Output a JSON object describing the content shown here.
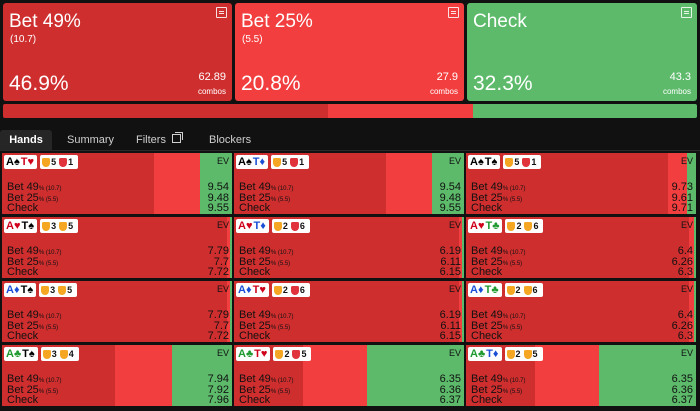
{
  "actions": [
    {
      "name": "Bet 49%",
      "size": "(10.7)",
      "freq": "46.9%",
      "combos": "62.89",
      "combos_label": "combos",
      "color": "#cf2e2e"
    },
    {
      "name": "Bet 25%",
      "size": "(5.5)",
      "freq": "20.8%",
      "combos": "27.9",
      "combos_label": "combos",
      "color": "#f23e3e"
    },
    {
      "name": "Check",
      "size": "",
      "freq": "32.3%",
      "combos": "43.3",
      "combos_label": "combos",
      "color": "#5cba6a"
    }
  ],
  "freq_bar": [
    46.9,
    20.8,
    32.3
  ],
  "tabs": [
    {
      "label": "Hands",
      "active": true
    },
    {
      "label": "Summary",
      "active": false
    },
    {
      "label": "Filters",
      "active": false
    },
    {
      "label": "Blockers",
      "active": false
    }
  ],
  "row_labels": {
    "bet49": "Bet 49",
    "bet49_sub": "% (10.7)",
    "bet25": "Bet 25",
    "bet25_sub": "% (5.5)",
    "check": "Check",
    "ev": "EV"
  },
  "colors": {
    "bet49": "#cf2e2e",
    "bet25": "#f23e3e",
    "check": "#5cba6a"
  },
  "hands": [
    {
      "cards": [
        {
          "r": "A",
          "s": "♠",
          "c": "b"
        },
        {
          "r": "T",
          "s": "♥",
          "c": "r"
        }
      ],
      "badges": [
        {
          "color": "#f5a623",
          "n": "5"
        },
        {
          "color": "#e0333b",
          "n": "1"
        }
      ],
      "freqs": [
        66,
        20,
        14
      ],
      "ev": [
        "9.54",
        "9.48",
        "9.55"
      ]
    },
    {
      "cards": [
        {
          "r": "A",
          "s": "♠",
          "c": "b"
        },
        {
          "r": "T",
          "s": "♦",
          "c": "d"
        }
      ],
      "badges": [
        {
          "color": "#f5a623",
          "n": "5"
        },
        {
          "color": "#e0333b",
          "n": "1"
        }
      ],
      "freqs": [
        66,
        20,
        14
      ],
      "ev": [
        "9.54",
        "9.48",
        "9.55"
      ]
    },
    {
      "cards": [
        {
          "r": "A",
          "s": "♠",
          "c": "b"
        },
        {
          "r": "T",
          "s": "♠",
          "c": "b"
        }
      ],
      "badges": [
        {
          "color": "#f5a623",
          "n": "5"
        },
        {
          "color": "#e0333b",
          "n": "1"
        }
      ],
      "freqs": [
        88,
        8,
        4
      ],
      "ev": [
        "9.73",
        "9.61",
        "9.71"
      ]
    },
    {
      "cards": [
        {
          "r": "A",
          "s": "♥",
          "c": "r"
        },
        {
          "r": "T",
          "s": "♠",
          "c": "b"
        }
      ],
      "badges": [
        {
          "color": "#f5a623",
          "n": "3"
        },
        {
          "color": "#f5a623",
          "n": "5"
        }
      ],
      "freqs": [
        98,
        1,
        1
      ],
      "ev": [
        "7.79",
        "7.7",
        "7.72"
      ]
    },
    {
      "cards": [
        {
          "r": "A",
          "s": "♥",
          "c": "r"
        },
        {
          "r": "T",
          "s": "♦",
          "c": "d"
        }
      ],
      "badges": [
        {
          "color": "#f5a623",
          "n": "2"
        },
        {
          "color": "#e0333b",
          "n": "6"
        }
      ],
      "freqs": [
        98,
        1,
        1
      ],
      "ev": [
        "6.19",
        "6.11",
        "6.15"
      ]
    },
    {
      "cards": [
        {
          "r": "A",
          "s": "♥",
          "c": "r"
        },
        {
          "r": "T",
          "s": "♣",
          "c": "c"
        }
      ],
      "badges": [
        {
          "color": "#f5a623",
          "n": "2"
        },
        {
          "color": "#f5a623",
          "n": "6"
        }
      ],
      "freqs": [
        97,
        2,
        1
      ],
      "ev": [
        "6.4",
        "6.26",
        "6.3"
      ]
    },
    {
      "cards": [
        {
          "r": "A",
          "s": "♦",
          "c": "d"
        },
        {
          "r": "T",
          "s": "♠",
          "c": "b"
        }
      ],
      "badges": [
        {
          "color": "#f5a623",
          "n": "3"
        },
        {
          "color": "#f5a623",
          "n": "5"
        }
      ],
      "freqs": [
        98,
        1,
        1
      ],
      "ev": [
        "7.79",
        "7.7",
        "7.72"
      ]
    },
    {
      "cards": [
        {
          "r": "A",
          "s": "♦",
          "c": "d"
        },
        {
          "r": "T",
          "s": "♥",
          "c": "r"
        }
      ],
      "badges": [
        {
          "color": "#f5a623",
          "n": "2"
        },
        {
          "color": "#e0333b",
          "n": "6"
        }
      ],
      "freqs": [
        98,
        1,
        1
      ],
      "ev": [
        "6.19",
        "6.11",
        "6.15"
      ]
    },
    {
      "cards": [
        {
          "r": "A",
          "s": "♦",
          "c": "d"
        },
        {
          "r": "T",
          "s": "♣",
          "c": "c"
        }
      ],
      "badges": [
        {
          "color": "#f5a623",
          "n": "2"
        },
        {
          "color": "#f5a623",
          "n": "6"
        }
      ],
      "freqs": [
        97,
        2,
        1
      ],
      "ev": [
        "6.4",
        "6.26",
        "6.3"
      ]
    },
    {
      "cards": [
        {
          "r": "A",
          "s": "♣",
          "c": "c"
        },
        {
          "r": "T",
          "s": "♠",
          "c": "b"
        }
      ],
      "badges": [
        {
          "color": "#f5a623",
          "n": "3"
        },
        {
          "color": "#f5a623",
          "n": "4"
        }
      ],
      "freqs": [
        49,
        25,
        26
      ],
      "ev": [
        "7.94",
        "7.92",
        "7.96"
      ]
    },
    {
      "cards": [
        {
          "r": "A",
          "s": "♣",
          "c": "c"
        },
        {
          "r": "T",
          "s": "♥",
          "c": "r"
        }
      ],
      "badges": [
        {
          "color": "#f5a623",
          "n": "2"
        },
        {
          "color": "#e0333b",
          "n": "5"
        }
      ],
      "freqs": [
        30,
        28,
        42
      ],
      "ev": [
        "6.35",
        "6.36",
        "6.37"
      ]
    },
    {
      "cards": [
        {
          "r": "A",
          "s": "♣",
          "c": "c"
        },
        {
          "r": "T",
          "s": "♦",
          "c": "d"
        }
      ],
      "badges": [
        {
          "color": "#f5a623",
          "n": "2"
        },
        {
          "color": "#f5a623",
          "n": "5"
        }
      ],
      "freqs": [
        30,
        28,
        42
      ],
      "ev": [
        "6.35",
        "6.36",
        "6.37"
      ]
    }
  ]
}
